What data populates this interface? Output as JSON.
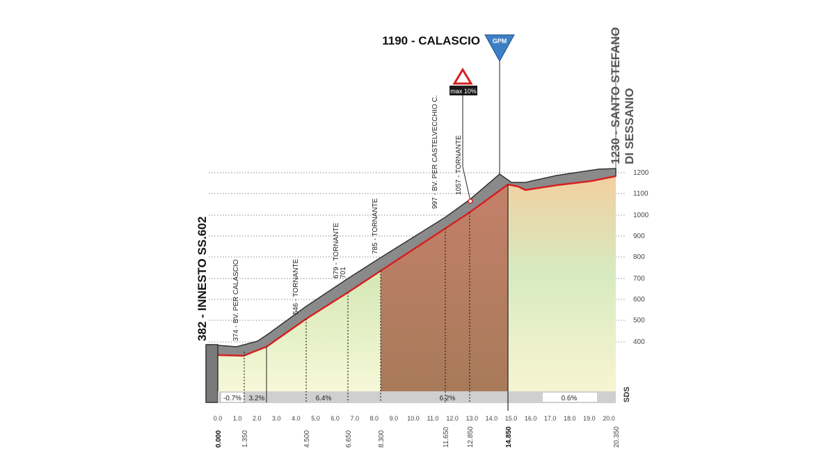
{
  "labels": {
    "climb": "1190 - CALASCIO",
    "gpm": "GPM",
    "max_grade": "max 10%",
    "finish_line1": "1230 - SANTO STEFANO",
    "finish_line2": "DI SESSANIO",
    "start": "382 - INNESTO SS.602",
    "sds": "SDS"
  },
  "waypoints": [
    "374 - BV. PER CALASCIO",
    "546 - TORNANTE",
    "679 - TORNANTE",
    "701",
    "785 - TORNANTE",
    "997 - BV. PER CASTELVECCHIO C.",
    "1057 - TORNANTE"
  ],
  "altitude_ticks": [
    "1200",
    "1100",
    "1000",
    "900",
    "800",
    "700",
    "600",
    "500",
    "400"
  ],
  "km_ticks": [
    "0.0",
    "1.0",
    "2.0",
    "3.0",
    "4.0",
    "5.0",
    "6.0",
    "7.0",
    "8.0",
    "9.0",
    "10.0",
    "11.0",
    "12.0",
    "13.0",
    "14.0",
    "15.0",
    "16.0",
    "17.0",
    "18.0",
    "19.0",
    "20.0"
  ],
  "distance_marks": [
    "0.000",
    "1.350",
    "4.500",
    "6.650",
    "8.300",
    "11.650",
    "12.850",
    "14.850",
    "20.350"
  ],
  "gradients": [
    "-0.7%",
    "3.2%",
    "6.4%",
    "6.2%",
    "0.6%"
  ]
}
